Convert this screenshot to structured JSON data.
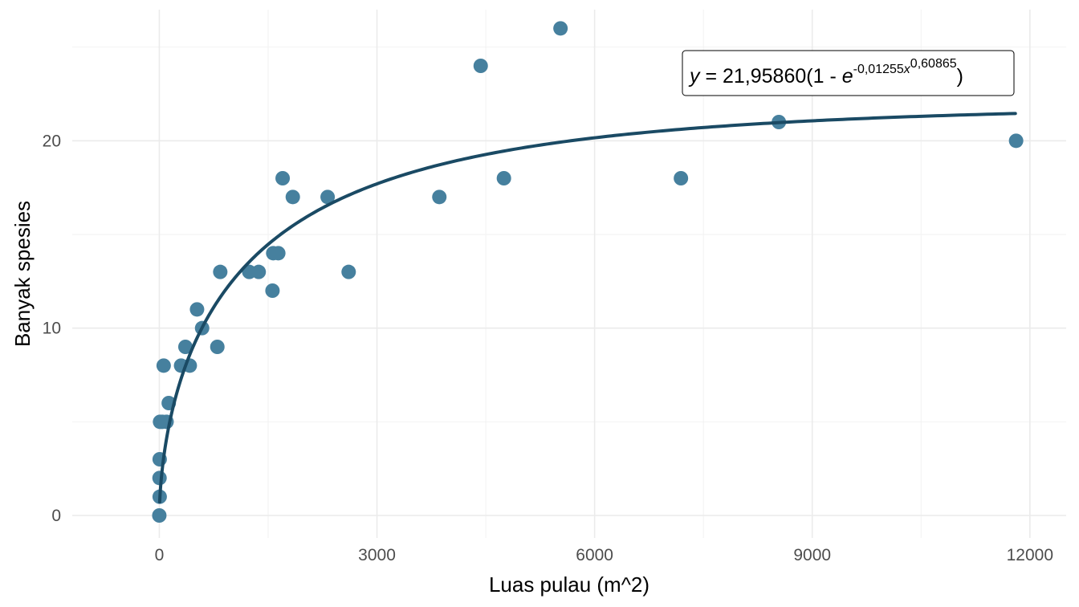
{
  "chart_data": {
    "type": "scatter",
    "title": "",
    "xlabel": "Luas pulau (m^2)",
    "ylabel": "Banyak spesies",
    "xlim": [
      -1200,
      12500
    ],
    "ylim": [
      -1.2,
      27
    ],
    "x_ticks": [
      0,
      3000,
      6000,
      9000,
      12000
    ],
    "x_tick_labels": [
      "0",
      "3000",
      "6000",
      "9000",
      "12000"
    ],
    "y_ticks": [
      0,
      10,
      20
    ],
    "y_tick_labels": [
      "0",
      "10",
      "20"
    ],
    "x_minor_grid": [
      1500,
      4500,
      7500,
      10500
    ],
    "y_minor_grid": [
      5,
      15,
      25
    ],
    "grid": true,
    "colors": {
      "points": "#46809E",
      "curve": "#1A4A64",
      "grid_major": "#EBEBEB",
      "grid_minor": "#F2F2F2"
    },
    "points": [
      {
        "x": 0,
        "y": 0
      },
      {
        "x": 5,
        "y": 1
      },
      {
        "x": 3,
        "y": 2
      },
      {
        "x": 5,
        "y": 3
      },
      {
        "x": 10,
        "y": 5
      },
      {
        "x": 40,
        "y": 5
      },
      {
        "x": 100,
        "y": 5
      },
      {
        "x": 60,
        "y": 8
      },
      {
        "x": 130,
        "y": 6
      },
      {
        "x": 300,
        "y": 8
      },
      {
        "x": 420,
        "y": 8
      },
      {
        "x": 360,
        "y": 9
      },
      {
        "x": 800,
        "y": 9
      },
      {
        "x": 590,
        "y": 10
      },
      {
        "x": 520,
        "y": 11
      },
      {
        "x": 840,
        "y": 13
      },
      {
        "x": 1240,
        "y": 13
      },
      {
        "x": 1370,
        "y": 13
      },
      {
        "x": 1560,
        "y": 12
      },
      {
        "x": 1570,
        "y": 14
      },
      {
        "x": 1640,
        "y": 14
      },
      {
        "x": 1700,
        "y": 18
      },
      {
        "x": 1840,
        "y": 17
      },
      {
        "x": 2320,
        "y": 17
      },
      {
        "x": 2610,
        "y": 13
      },
      {
        "x": 3860,
        "y": 17
      },
      {
        "x": 4430,
        "y": 24
      },
      {
        "x": 4750,
        "y": 18
      },
      {
        "x": 5530,
        "y": 26
      },
      {
        "x": 7190,
        "y": 18
      },
      {
        "x": 8540,
        "y": 21
      },
      {
        "x": 11810,
        "y": 20
      }
    ],
    "model": {
      "a": 21.9586,
      "b": 0.01255,
      "c": 0.60865,
      "x_range": [
        5,
        11800
      ]
    },
    "equation": {
      "y_var": "y",
      "equals": " = 21,95860(1 - ",
      "e_var": "e",
      "exp_coef": "-0,01255",
      "x_var": "x",
      "x_exp": "0,60865",
      "close": ")"
    }
  }
}
